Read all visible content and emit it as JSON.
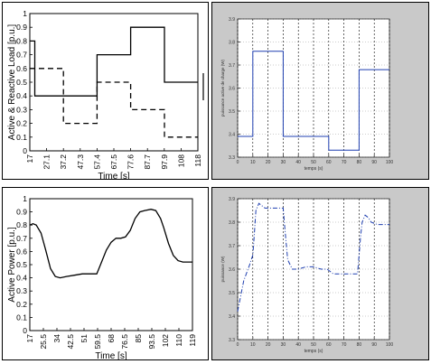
{
  "chart_data": [
    {
      "type": "line",
      "xlabel": "Time [s]",
      "ylabel": "Active & Reactive Load [p.u.]",
      "categories": [
        "17",
        "27.1",
        "37.2",
        "47.3",
        "57.4",
        "67.5",
        "77.6",
        "87.7",
        "97.9",
        "108",
        "118"
      ],
      "xlim": [
        17,
        118
      ],
      "ylim": [
        0,
        1
      ],
      "yticks": [
        "0",
        "0.1",
        "0.2",
        "0.3",
        "0.4",
        "0.5",
        "0.6",
        "0.7",
        "0.8",
        "0.9",
        "1"
      ],
      "grid": false,
      "series": [
        {
          "style": "solid",
          "color": "#000000",
          "step": true,
          "x": [
            17,
            20,
            57.4,
            77.6,
            97.9,
            118
          ],
          "y": [
            0.8,
            0.4,
            0.7,
            0.9,
            0.5,
            0.5
          ]
        },
        {
          "style": "dashed",
          "color": "#000000",
          "step": true,
          "x": [
            17,
            20,
            37.2,
            57.4,
            77.6,
            97.9,
            118
          ],
          "y": [
            0.6,
            0.6,
            0.2,
            0.5,
            0.3,
            0.1,
            0.1
          ]
        }
      ]
    },
    {
      "type": "line",
      "xlabel": "temps (s)",
      "ylabel": "puissance active de charge (W)",
      "xticks": [
        "0",
        "10",
        "20",
        "30",
        "40",
        "50",
        "60",
        "70",
        "80",
        "90",
        "100"
      ],
      "yticks": [
        "3.3",
        "3.4",
        "3.5",
        "3.6",
        "3.7",
        "3.8",
        "3.9"
      ],
      "xlim": [
        0,
        100
      ],
      "ylim": [
        3.3,
        3.9
      ],
      "grid": true,
      "series": [
        {
          "style": "solid",
          "color": "#1f3fb0",
          "step": true,
          "x": [
            0,
            10,
            30,
            60,
            80,
            100
          ],
          "y": [
            3.39,
            3.76,
            3.39,
            3.33,
            3.68,
            3.68
          ]
        }
      ]
    },
    {
      "type": "line",
      "xlabel": "Time [s]",
      "ylabel": "Active Power [p.u.]",
      "categories": [
        "17",
        "25.5",
        "34",
        "42.5",
        "51",
        "59.5",
        "68",
        "76.5",
        "85",
        "93.5",
        "102",
        "110",
        "119"
      ],
      "xlim": [
        17,
        119
      ],
      "ylim": [
        0,
        1
      ],
      "yticks": [
        "0",
        "0.1",
        "0.2",
        "0.3",
        "0.4",
        "0.5",
        "0.6",
        "0.7",
        "0.8",
        "0.9",
        "1"
      ],
      "grid": false,
      "series": [
        {
          "style": "solid",
          "color": "#000000",
          "x": [
            17,
            19,
            21,
            24,
            27,
            30,
            33,
            36,
            40,
            45,
            50,
            55,
            59,
            62,
            65,
            68,
            71,
            74,
            77,
            80,
            83,
            86,
            89,
            93,
            96,
            99,
            101,
            104,
            107,
            110,
            113,
            116,
            119
          ],
          "y": [
            0.8,
            0.81,
            0.8,
            0.74,
            0.61,
            0.47,
            0.41,
            0.4,
            0.41,
            0.42,
            0.43,
            0.43,
            0.43,
            0.52,
            0.61,
            0.67,
            0.7,
            0.7,
            0.71,
            0.76,
            0.85,
            0.9,
            0.91,
            0.92,
            0.91,
            0.85,
            0.78,
            0.66,
            0.57,
            0.53,
            0.52,
            0.52,
            0.52
          ]
        }
      ]
    },
    {
      "type": "line",
      "xlabel": "temps (s)",
      "ylabel": "puissance (W)",
      "xticks": [
        "0",
        "10",
        "20",
        "30",
        "40",
        "50",
        "60",
        "70",
        "80",
        "90",
        "100"
      ],
      "yticks": [
        "3.3",
        "3.4",
        "3.5",
        "3.6",
        "3.7",
        "3.8",
        "3.9"
      ],
      "xlim": [
        0,
        100
      ],
      "ylim": [
        3.3,
        3.9
      ],
      "grid": true,
      "series": [
        {
          "style": "dashdot",
          "color": "#1f3fb0",
          "x": [
            0,
            4,
            8,
            10,
            11,
            12,
            14,
            16,
            18,
            20,
            24,
            28,
            30,
            31,
            33,
            36,
            40,
            45,
            50,
            55,
            59,
            61,
            63,
            67,
            72,
            76,
            79,
            80,
            81,
            82,
            84,
            86,
            88,
            92,
            96,
            100
          ],
          "y": [
            3.42,
            3.55,
            3.62,
            3.66,
            3.75,
            3.85,
            3.88,
            3.87,
            3.86,
            3.86,
            3.86,
            3.86,
            3.86,
            3.78,
            3.64,
            3.6,
            3.6,
            3.61,
            3.61,
            3.6,
            3.6,
            3.59,
            3.58,
            3.58,
            3.58,
            3.58,
            3.58,
            3.66,
            3.74,
            3.8,
            3.83,
            3.82,
            3.8,
            3.79,
            3.79,
            3.79
          ]
        }
      ]
    }
  ]
}
